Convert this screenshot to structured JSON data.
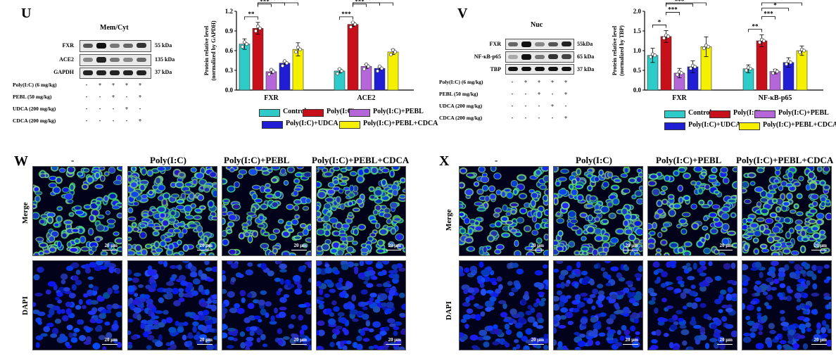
{
  "panels": {
    "U": "U",
    "V": "V",
    "W": "W",
    "X": "X"
  },
  "treatments": {
    "rows": [
      "Poly(I:C) (6 mg/kg)",
      "PEBL (50 mg/kg)",
      "UDCA (200 mg/kg)",
      "CDCA (200 mg/kg)"
    ],
    "signs": [
      [
        "-",
        "+",
        "+",
        "+",
        "+"
      ],
      [
        "-",
        "-",
        "+",
        "-",
        "+"
      ],
      [
        "-",
        "-",
        "-",
        "+",
        "-"
      ],
      [
        "-",
        "-",
        "-",
        "-",
        "+"
      ]
    ]
  },
  "blot_U": {
    "title": "Mem/Cyt",
    "bands": [
      {
        "name": "FXR",
        "kda": "55 kDa"
      },
      {
        "name": "ACE2",
        "kda": "135 kDa"
      },
      {
        "name": "GAPDH",
        "kda": "37 kDa"
      }
    ]
  },
  "blot_V": {
    "title": "Nuc",
    "bands": [
      {
        "name": "FXR",
        "kda": "55kDa"
      },
      {
        "name": "NF-κB-p65",
        "kda": "65 kDa"
      },
      {
        "name": "TBP",
        "kda": "37 kDa"
      }
    ]
  },
  "legend": {
    "items": [
      "Control",
      "Poly(I:C)",
      "Poly(I:C)+PEBL",
      "Poly(I:C)+UDCA",
      "Poly(I:C)+PEBL+CDCA"
    ],
    "colors": [
      "#2ecbc9",
      "#c8101a",
      "#b566d8",
      "#1f1ed4",
      "#f5f000"
    ]
  },
  "chart_data": [
    {
      "type": "bar",
      "panel": "U",
      "ylabel": "Protein relative level (normalized by GAPDH)",
      "ylim": [
        0,
        1.2
      ],
      "yticks": [
        "0.0",
        "0.3",
        "0.6",
        "0.9",
        "1.2"
      ],
      "categories": [
        "FXR",
        "ACE2"
      ],
      "series": [
        {
          "name": "Control",
          "values": [
            0.7,
            0.29
          ]
        },
        {
          "name": "Poly(I:C)",
          "values": [
            0.94,
            1.0
          ]
        },
        {
          "name": "Poly(I:C)+PEBL",
          "values": [
            0.28,
            0.36
          ]
        },
        {
          "name": "Poly(I:C)+UDCA",
          "values": [
            0.41,
            0.33
          ]
        },
        {
          "name": "Poly(I:C)+PEBL+CDCA",
          "values": [
            0.62,
            0.58
          ]
        }
      ],
      "errors": [
        [
          0.08,
          0.03
        ],
        [
          0.09,
          0.03
        ],
        [
          0.03,
          0.03
        ],
        [
          0.02,
          0.02
        ],
        [
          0.1,
          0.04
        ]
      ],
      "significance": [
        {
          "group": 0,
          "from": 0,
          "to": 1,
          "label": "**"
        },
        {
          "group": 0,
          "from": 1,
          "to": 2,
          "label": "***"
        },
        {
          "group": 0,
          "from": 1,
          "to": 3,
          "label": "***"
        },
        {
          "group": 0,
          "from": 1,
          "to": 4,
          "label": "***"
        },
        {
          "group": 1,
          "from": 0,
          "to": 1,
          "label": "***"
        },
        {
          "group": 1,
          "from": 1,
          "to": 2,
          "label": "***"
        },
        {
          "group": 1,
          "from": 1,
          "to": 3,
          "label": "***"
        },
        {
          "group": 1,
          "from": 1,
          "to": 4,
          "label": "***"
        }
      ]
    },
    {
      "type": "bar",
      "panel": "V",
      "ylabel": "Protein relative level (normalized by TBP)",
      "ylim": [
        0,
        2.0
      ],
      "yticks": [
        "0.0",
        "0.5",
        "1.0",
        "1.5",
        "2.0"
      ],
      "categories": [
        "FXR",
        "NF-κB-p65"
      ],
      "series": [
        {
          "name": "Control",
          "values": [
            0.88,
            0.54
          ]
        },
        {
          "name": "Poly(I:C)",
          "values": [
            1.36,
            1.25
          ]
        },
        {
          "name": "Poly(I:C)+PEBL",
          "values": [
            0.43,
            0.47
          ]
        },
        {
          "name": "Poly(I:C)+UDCA",
          "values": [
            0.59,
            0.7
          ]
        },
        {
          "name": "Poly(I:C)+PEBL+CDCA",
          "values": [
            1.1,
            1.0
          ]
        }
      ],
      "errors": [
        [
          0.18,
          0.1
        ],
        [
          0.15,
          0.15
        ],
        [
          0.12,
          0.06
        ],
        [
          0.15,
          0.12
        ],
        [
          0.25,
          0.12
        ]
      ],
      "significance": [
        {
          "group": 0,
          "from": 0,
          "to": 1,
          "label": "*"
        },
        {
          "group": 0,
          "from": 1,
          "to": 2,
          "label": "***"
        },
        {
          "group": 0,
          "from": 1,
          "to": 3,
          "label": "***"
        },
        {
          "group": 0,
          "from": 1,
          "to": 4,
          "label": ""
        },
        {
          "group": 1,
          "from": 0,
          "to": 1,
          "label": "**"
        },
        {
          "group": 1,
          "from": 1,
          "to": 2,
          "label": "***"
        },
        {
          "group": 1,
          "from": 1,
          "to": 3,
          "label": "*"
        },
        {
          "group": 1,
          "from": 1,
          "to": 4,
          "label": "*"
        }
      ]
    }
  ],
  "microscopy": {
    "W": {
      "columns": [
        "-",
        "Poly(I:C)",
        "Poly(I:C)+PEBL",
        "Poly(I:C)+PEBL+CDCA"
      ],
      "rows": [
        "Merge",
        "DAPI"
      ],
      "scale": "20 μm"
    },
    "X": {
      "columns": [
        "-",
        "Poly(I:C)",
        "Poly(I:C)+PEBL",
        "Poly(I:C)+PEBL+CDCA"
      ],
      "rows": [
        "Merge",
        "DAPI"
      ],
      "scale": "20 μm"
    }
  }
}
